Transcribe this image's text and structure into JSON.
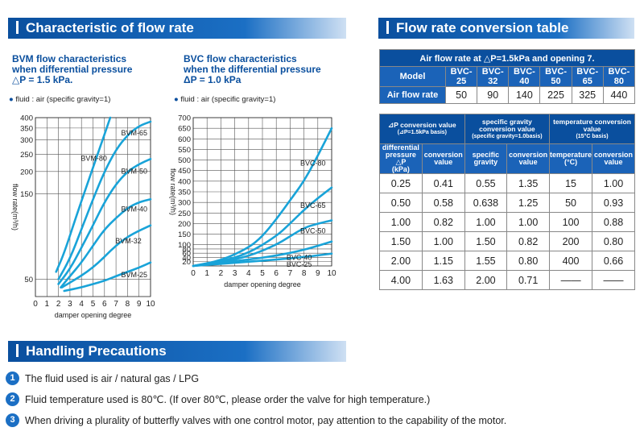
{
  "banners": {
    "flow": "Characteristic of flow rate",
    "table": "Flow rate conversion table",
    "handling": "Handling Precautions"
  },
  "bvm": {
    "title_line1": "BVM flow characteristics",
    "title_line2": "when differential pressure",
    "title_line3": "△P = 1.5 kPa.",
    "fluid": "fluid : air (specific gravity=1)"
  },
  "bvc": {
    "title_line1": "BVC flow characteristics",
    "title_line2": "when the differential pressure",
    "title_line3": "ΔP = 1.0 kPa",
    "fluid": "fluid : air (specific gravity=1)"
  },
  "air_table": {
    "heading": "Air flow rate at △P=1.5kPa and opening 7.",
    "model_label": "Model",
    "models": [
      "BVC-25",
      "BVC-32",
      "BVC-40",
      "BVC-50",
      "BVC-65",
      "BVC-80"
    ],
    "row_label": "Air flow rate",
    "values": [
      "50",
      "90",
      "140",
      "225",
      "325",
      "440"
    ]
  },
  "conv_table": {
    "groups": {
      "dp": "⊿P conversion value",
      "dp_sub": "(⊿P=1.5kPa basis)",
      "sg": "specific gravity conversion value",
      "sg_sub": "(specific gravity=1.0basis)",
      "temp": "temperature conversion value",
      "temp_sub": "(15°C basis)"
    },
    "cols": {
      "dp_l1": "differential",
      "dp_l2": "pressure △P",
      "dp_l3": "(kPa)",
      "conv_l1": "conversion",
      "conv_l2": "value",
      "sg_l1": "specific",
      "sg_l2": "gravity",
      "temp_l1": "temperature",
      "temp_l2": "(°C)"
    },
    "rows": [
      [
        "0.25",
        "0.41",
        "0.55",
        "1.35",
        "15",
        "1.00"
      ],
      [
        "0.50",
        "0.58",
        "0.638",
        "1.25",
        "50",
        "0.93"
      ],
      [
        "1.00",
        "0.82",
        "1.00",
        "1.00",
        "100",
        "0.88"
      ],
      [
        "1.50",
        "1.00",
        "1.50",
        "0.82",
        "200",
        "0.80"
      ],
      [
        "2.00",
        "1.15",
        "1.55",
        "0.80",
        "400",
        "0.66"
      ],
      [
        "4.00",
        "1.63",
        "2.00",
        "0.71",
        "——",
        "——"
      ]
    ]
  },
  "precautions": [
    {
      "num": "1",
      "text": "The fluid used is air / natural gas / LPG"
    },
    {
      "num": "2",
      "text": "Fluid temperature used is 80℃. (If over 80℃, please order the valve for high temperature.)"
    },
    {
      "num": "3",
      "text": "When driving a plurality of butterfly valves with one control motor, pay attention to the capability of the motor."
    }
  ],
  "colors": {
    "brand": "#0a4f9e",
    "curve": "#19a3d8"
  },
  "chart_data": [
    {
      "type": "line",
      "title": "BVM flow characteristics when differential pressure △P = 1.5 kPa.",
      "xlabel": "damper opening degree",
      "ylabel": "flow rate(m³/h)",
      "yscale": "log",
      "xlim": [
        0,
        10
      ],
      "ylim": [
        40,
        400
      ],
      "x_ticks": [
        "0",
        "1",
        "2",
        "3",
        "4",
        "5",
        "6",
        "7",
        "8",
        "9",
        "10"
      ],
      "y_ticks": [
        {
          "v": 50,
          "label": "50"
        },
        {
          "v": 150,
          "label": "150"
        },
        {
          "v": 200,
          "label": "200"
        },
        {
          "v": 250,
          "label": "250"
        },
        {
          "v": 300,
          "label": "300"
        },
        {
          "v": 350,
          "label": "350"
        },
        {
          "v": 400,
          "label": "400"
        }
      ],
      "series": [
        {
          "name": "BVM-25",
          "x": [
            2.5,
            4,
            5,
            6,
            7,
            8,
            9,
            10
          ],
          "values": [
            43,
            45,
            47,
            49,
            52,
            55,
            58,
            62
          ]
        },
        {
          "name": "BVM-32",
          "x": [
            2.3,
            3.5,
            4.5,
            5.5,
            6.5,
            7.5,
            8.5,
            10
          ],
          "values": [
            45,
            50,
            55,
            62,
            72,
            82,
            90,
            100
          ]
        },
        {
          "name": "BVM-40",
          "x": [
            2.2,
            3,
            4,
            5,
            6,
            7,
            8,
            9,
            10
          ],
          "values": [
            45,
            52,
            62,
            77,
            95,
            110,
            125,
            135,
            140
          ]
        },
        {
          "name": "BVM-50",
          "x": [
            2.0,
            3,
            4,
            5,
            6,
            7,
            8,
            9,
            10
          ],
          "values": [
            47,
            57,
            75,
            100,
            135,
            170,
            200,
            220,
            235
          ]
        },
        {
          "name": "BVM-65",
          "x": [
            2.0,
            3,
            4,
            5,
            6,
            7,
            8,
            9,
            10
          ],
          "values": [
            50,
            65,
            95,
            140,
            200,
            265,
            320,
            360,
            380
          ]
        },
        {
          "name": "BVM-80",
          "x": [
            1.8,
            2.5,
            3.5,
            4.5,
            5.5,
            6.5
          ],
          "values": [
            55,
            70,
            110,
            170,
            260,
            400
          ]
        }
      ]
    },
    {
      "type": "line",
      "title": "BVC flow characteristics when the differential pressure ΔP = 1.0 kPa",
      "xlabel": "damper opening degree",
      "ylabel": "flow rate(m³/h)",
      "xlim": [
        0,
        10
      ],
      "ylim": [
        0,
        700
      ],
      "x_ticks": [
        "0",
        "1",
        "2",
        "3",
        "4",
        "5",
        "6",
        "7",
        "8",
        "9",
        "10"
      ],
      "y_ticks": [
        {
          "v": 20,
          "label": "20"
        },
        {
          "v": 40,
          "label": "40"
        },
        {
          "v": 60,
          "label": "60"
        },
        {
          "v": 80,
          "label": "80"
        },
        {
          "v": 100,
          "label": "100"
        },
        {
          "v": 150,
          "label": "150"
        },
        {
          "v": 200,
          "label": "200"
        },
        {
          "v": 250,
          "label": "250"
        },
        {
          "v": 300,
          "label": "300"
        },
        {
          "v": 350,
          "label": "350"
        },
        {
          "v": 400,
          "label": "400"
        },
        {
          "v": 450,
          "label": "450"
        },
        {
          "v": 500,
          "label": "500"
        },
        {
          "v": 550,
          "label": "550"
        },
        {
          "v": 600,
          "label": "600"
        },
        {
          "v": 650,
          "label": "650"
        },
        {
          "v": 700,
          "label": "700"
        }
      ],
      "series": [
        {
          "name": "BVC-25",
          "x": [
            0,
            2,
            4,
            6,
            8,
            10
          ],
          "values": [
            0,
            10,
            20,
            30,
            42,
            58
          ]
        },
        {
          "name": "BVC-40",
          "x": [
            0,
            2,
            4,
            6,
            8,
            10
          ],
          "values": [
            0,
            15,
            30,
            48,
            75,
            115
          ]
        },
        {
          "name": "BVC-50",
          "x": [
            0,
            2,
            4,
            6,
            7,
            8,
            9,
            10
          ],
          "values": [
            0,
            18,
            45,
            100,
            140,
            180,
            200,
            215
          ]
        },
        {
          "name": "BVC-65",
          "x": [
            0,
            2,
            4,
            6,
            7,
            8,
            9,
            10
          ],
          "values": [
            0,
            20,
            60,
            140,
            200,
            265,
            320,
            370
          ]
        },
        {
          "name": "BVC-80",
          "x": [
            0,
            2,
            4,
            5,
            6,
            7,
            8,
            9,
            10
          ],
          "values": [
            0,
            25,
            85,
            140,
            220,
            310,
            400,
            520,
            650
          ]
        }
      ]
    }
  ]
}
